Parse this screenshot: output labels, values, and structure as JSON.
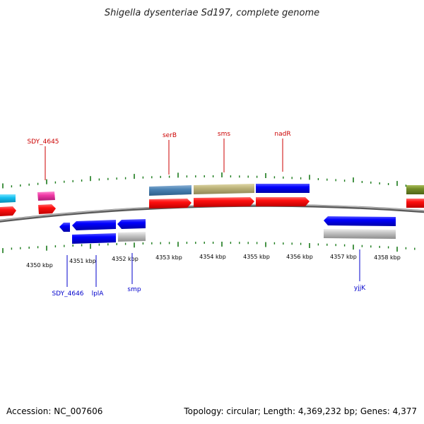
{
  "title": "Shigella dysenteriae Sd197, complete genome",
  "footer": {
    "accession": "Accession: NC_007606",
    "summary": "Topology: circular; Length: 4,369,232 bp; Genes: 4,377"
  },
  "colors": {
    "backbone": "#8a8a8a",
    "tick": "#1a7a1a",
    "label_top": "#cc0000",
    "label_bottom": "#0000cc"
  },
  "scale": {
    "unit": "kbp",
    "ticks": [
      {
        "kbp": 4350,
        "label": "4350 kbp"
      },
      {
        "kbp": 4351,
        "label": "4351 kbp"
      },
      {
        "kbp": 4352,
        "label": "4352 kbp"
      },
      {
        "kbp": 4353,
        "label": "4353 kbp"
      },
      {
        "kbp": 4354,
        "label": "4354 kbp"
      },
      {
        "kbp": 4355,
        "label": "4355 kbp"
      },
      {
        "kbp": 4356,
        "label": "4356 kbp"
      },
      {
        "kbp": 4357,
        "label": "4357 kbp"
      },
      {
        "kbp": 4358,
        "label": "4358 kbp"
      }
    ]
  },
  "gene_labels_top": [
    {
      "name": "SDY_4645"
    },
    {
      "name": "serB"
    },
    {
      "name": "sms"
    },
    {
      "name": "nadR"
    }
  ],
  "gene_labels_bottom": [
    {
      "name": "SDY_4646"
    },
    {
      "name": "lplA"
    },
    {
      "name": "smp"
    },
    {
      "name": "yjjK"
    }
  ]
}
